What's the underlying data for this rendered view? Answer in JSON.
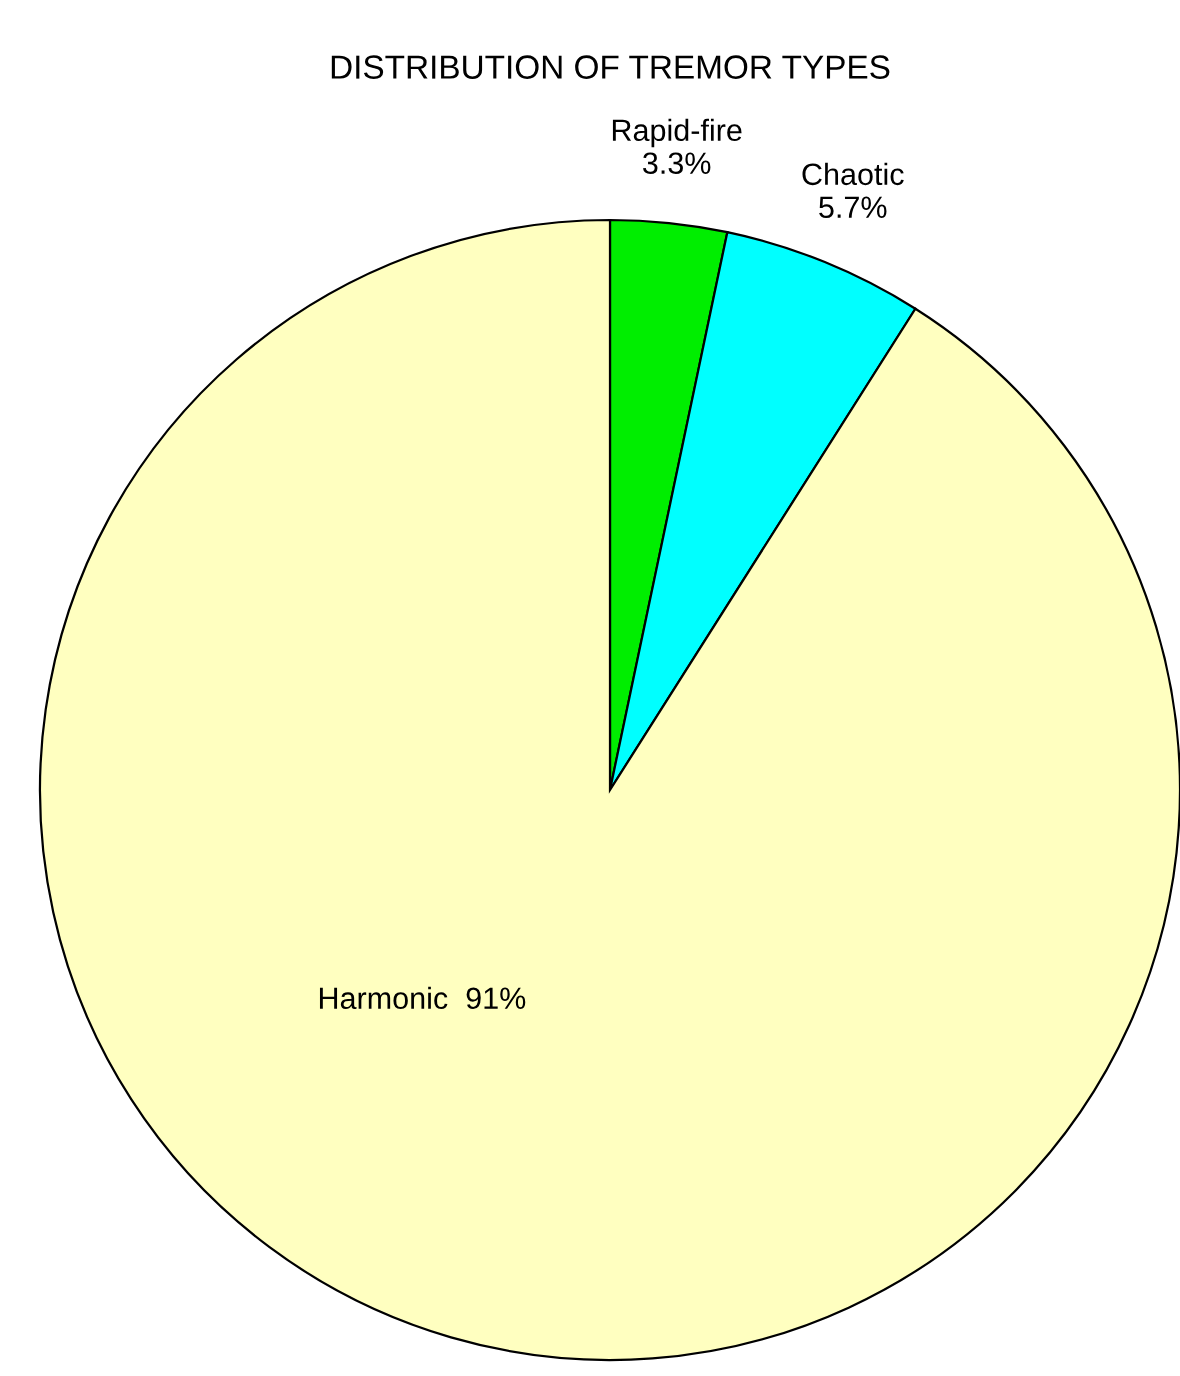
{
  "chart_data": {
    "type": "pie",
    "title": "DISTRIBUTION OF TREMOR TYPES",
    "categories": [
      "Rapid-fire",
      "Chaotic",
      "Harmonic"
    ],
    "values": [
      3.3,
      5.7,
      91
    ],
    "value_labels": [
      "3.3%",
      "5.7%",
      "91%"
    ],
    "colors": [
      "#00ee00",
      "#00ffff",
      "#ffffc0"
    ]
  }
}
